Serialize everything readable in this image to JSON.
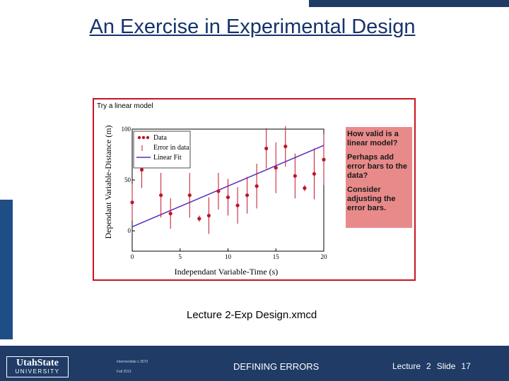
{
  "slide": {
    "title": "An Exercise in Experimental Design",
    "caption": "Lecture 2-Exp Design.xmcd"
  },
  "figure": {
    "title": "Try a linear model",
    "notes": [
      "How valid is a linear model?",
      "Perhaps add error bars to the data?",
      "Consider adjusting the error bars."
    ]
  },
  "chart_data": {
    "type": "scatter",
    "xlabel": "Independant Variable-Time (s)",
    "ylabel": "Dependant Variable-Distance (m)",
    "xlim": [
      0,
      20
    ],
    "ylim": [
      -20,
      100
    ],
    "xticks": [
      "0",
      "5",
      "10",
      "15",
      "20"
    ],
    "yticks": [
      "0",
      "50",
      "100"
    ],
    "legend": [
      "Data",
      "Error in data",
      "Linear Fit"
    ],
    "legend_position": "top-left",
    "series": [
      {
        "name": "Data",
        "points": [
          [
            0,
            28
          ],
          [
            1,
            60
          ],
          [
            3,
            35
          ],
          [
            4,
            17
          ],
          [
            6,
            35
          ],
          [
            7,
            12
          ],
          [
            8,
            15
          ],
          [
            9,
            39
          ],
          [
            10,
            33
          ],
          [
            11,
            25
          ],
          [
            12,
            35
          ],
          [
            13,
            44
          ],
          [
            14,
            81
          ],
          [
            15,
            62
          ],
          [
            16,
            83
          ],
          [
            17,
            54
          ],
          [
            18,
            42
          ],
          [
            19,
            56
          ],
          [
            20,
            70
          ]
        ],
        "errors": [
          [
            0,
            18
          ],
          [
            1,
            18
          ],
          [
            3,
            22
          ],
          [
            4,
            15
          ],
          [
            6,
            22
          ],
          [
            7,
            3
          ],
          [
            8,
            18
          ],
          [
            9,
            18
          ],
          [
            10,
            18
          ],
          [
            11,
            18
          ],
          [
            12,
            18
          ],
          [
            13,
            22
          ],
          [
            14,
            20
          ],
          [
            15,
            25
          ],
          [
            16,
            20
          ],
          [
            17,
            22
          ],
          [
            18,
            3
          ],
          [
            19,
            25
          ],
          [
            20,
            25
          ]
        ]
      }
    ],
    "fit": {
      "name": "Linear Fit",
      "intercept": 4,
      "slope": 4.0
    }
  },
  "footer": {
    "logo_line1": "UtahState",
    "logo_line2": "UNIVERSITY",
    "course": "Intermediate s 3570",
    "term": "Fall 2013",
    "topic": "DEFINING ERRORS",
    "lecture_label": "Lecture",
    "lecture_number": "2",
    "slide_label": "Slide",
    "slide_number": "17"
  },
  "colors": {
    "accent": "#1f3b66",
    "title": "#16336b",
    "data": "#c0142a",
    "fit": "#5a2bc0",
    "note_bg": "#e98a8a",
    "frame": "#c9141e"
  }
}
